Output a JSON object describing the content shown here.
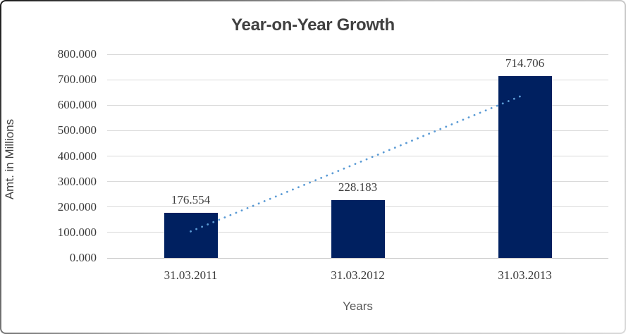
{
  "chart_data": {
    "type": "bar",
    "title": "Year-on-Year Growth",
    "xlabel": "Years",
    "ylabel": "Amt. in Millions",
    "categories": [
      "31.03.2011",
      "31.03.2012",
      "31.03.2013"
    ],
    "values": [
      176.554,
      228.183,
      714.706
    ],
    "data_labels": [
      "176.554",
      "228.183",
      "714.706"
    ],
    "ylim": [
      0,
      800
    ],
    "ytick_step": 100,
    "ytick_labels": [
      "0.000",
      "100.000",
      "200.000",
      "300.000",
      "400.000",
      "500.000",
      "600.000",
      "700.000",
      "800.000"
    ],
    "grid": true,
    "legend": false,
    "bar_color": "#002060",
    "gridline_color": "#d9d9d9",
    "trendline": {
      "type": "linear",
      "style": "dotted",
      "color": "#5b9bd5"
    }
  }
}
